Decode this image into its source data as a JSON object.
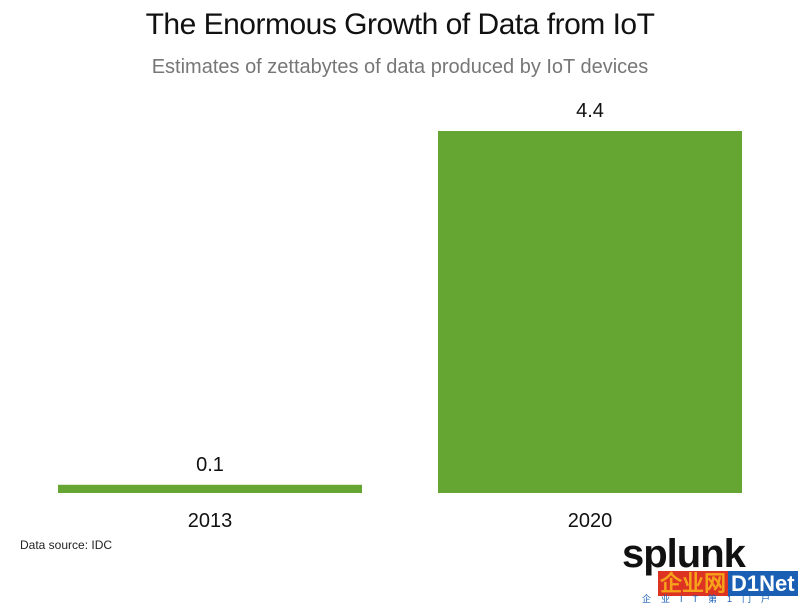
{
  "chart_data": {
    "type": "bar",
    "title": "The Enormous Growth of Data from IoT",
    "subtitle": "Estimates of zettabytes of data produced by IoT devices",
    "categories": [
      "2013",
      "2020"
    ],
    "values": [
      0.1,
      4.4
    ],
    "value_labels": [
      "0.1",
      "4.4"
    ],
    "xlabel": "",
    "ylabel": "",
    "ylim": [
      0,
      4.4
    ],
    "grid": false,
    "bar_color": "#65a532"
  },
  "footer": {
    "source": "Data source: IDC"
  },
  "logos": {
    "splunk": "splunk",
    "watermark_cn": "企业网",
    "watermark_en": "D1Net",
    "watermark_tagline": "企业IT第1门户"
  }
}
